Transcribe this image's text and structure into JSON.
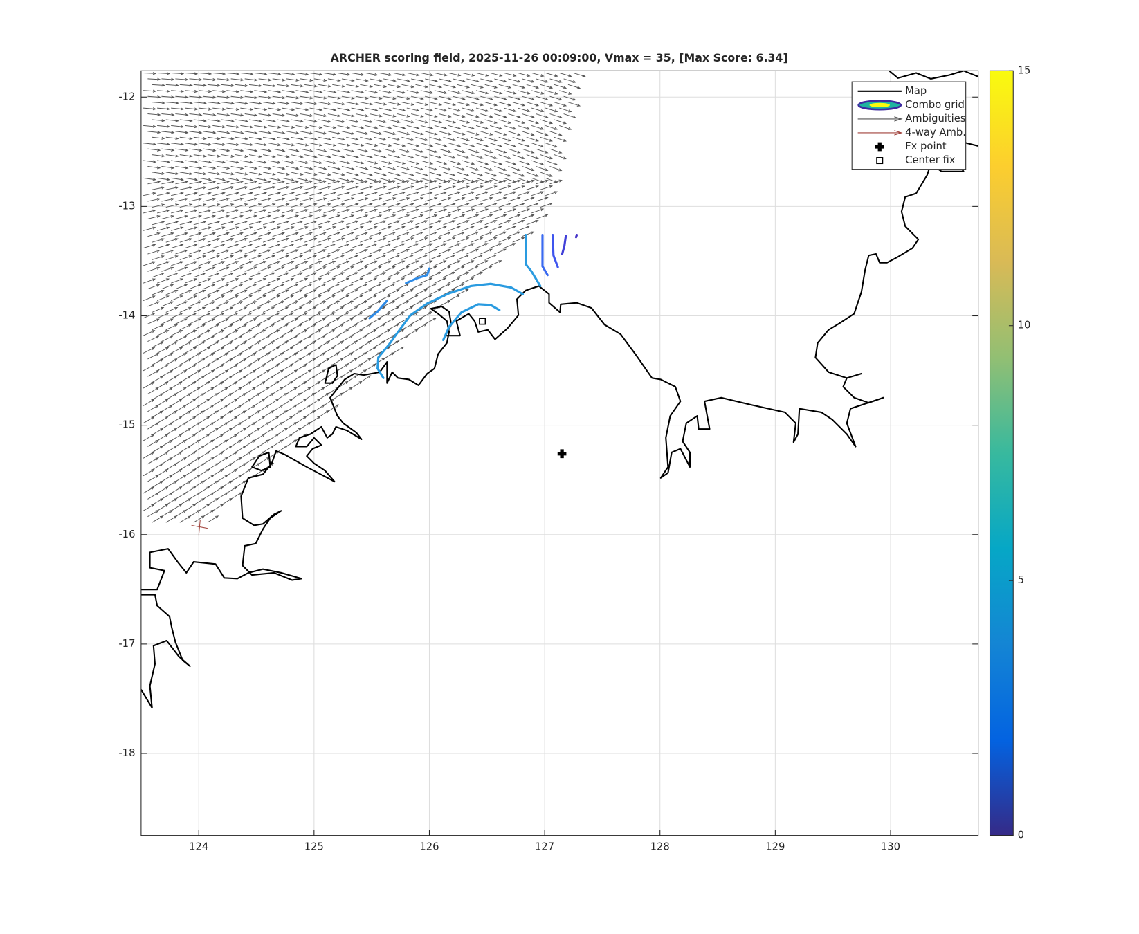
{
  "chart_data": {
    "type": "map",
    "title": "ARCHER scoring field, 2025-11-26 00:09:00, Vmax = 35, [Max Score: 6.34]",
    "xlim": [
      123.5,
      130.76
    ],
    "ylim": [
      -18.75,
      -11.76
    ],
    "xticks": [
      124,
      125,
      126,
      127,
      128,
      129,
      130
    ],
    "yticks": [
      -12,
      -13,
      -14,
      -15,
      -16,
      -17,
      -18
    ],
    "grid": true,
    "layers": [
      "Map",
      "Combo grid",
      "Ambiguities",
      "4-way Amb."
    ],
    "series": [
      {
        "name": "Fx point",
        "color": "#000000",
        "marker": "plus",
        "x": [
          127.15
        ],
        "values": [
          -15.26
        ]
      },
      {
        "name": "Center fix",
        "color": "#000000",
        "marker": "square",
        "x": [
          126.46
        ],
        "values": [
          -14.05
        ]
      }
    ],
    "legend_location": "northeast",
    "colorbar": {
      "lim": [
        0,
        15
      ],
      "ticks": [
        0,
        5,
        10,
        15
      ]
    }
  }
}
